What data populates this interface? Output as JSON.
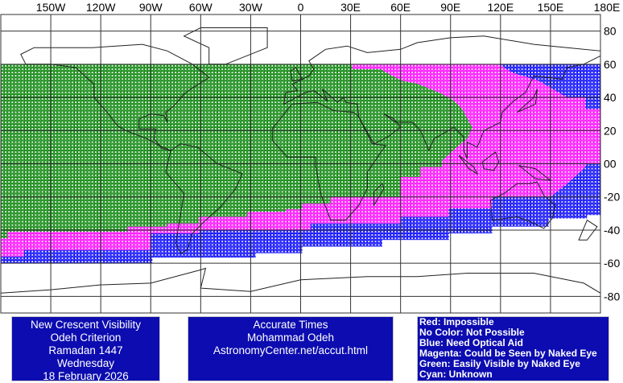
{
  "map_data": {
    "type": "map",
    "projection": "equirectangular",
    "lon_range": [
      -180,
      180
    ],
    "lat_range": [
      -90,
      90
    ],
    "grid": true,
    "lon_ticks": [
      "150W",
      "120W",
      "90W",
      "60W",
      "30W",
      "0",
      "30E",
      "60E",
      "90E",
      "120E",
      "150E",
      "180E"
    ],
    "lon_tick_values": [
      -150,
      -120,
      -90,
      -60,
      -30,
      0,
      30,
      60,
      90,
      120,
      150,
      180
    ],
    "lat_ticks": [
      "80",
      "60",
      "40",
      "20",
      "00",
      "-20",
      "-40",
      "-60",
      "-80"
    ],
    "lat_tick_values": [
      80,
      60,
      40,
      20,
      0,
      -20,
      -40,
      -60,
      -80
    ],
    "colors": {
      "blue": "#0000ff",
      "magenta": "#ff00ff",
      "green": "#008000",
      "coast": "#222222",
      "grid": "#333333"
    },
    "zones": [
      {
        "category": "Blue",
        "color": "#0000ff",
        "polygon": [
          [
            -180,
            60
          ],
          [
            180,
            60
          ],
          [
            180,
            -31
          ],
          [
            172,
            -31
          ],
          [
            172,
            -33
          ],
          [
            149,
            -33
          ],
          [
            149,
            -38
          ],
          [
            115,
            -38
          ],
          [
            115,
            -42
          ],
          [
            89,
            -42
          ],
          [
            89,
            -46
          ],
          [
            49,
            -46
          ],
          [
            49,
            -50
          ],
          [
            1,
            -50
          ],
          [
            1,
            -54
          ],
          [
            -27,
            -54
          ],
          [
            -27,
            -56.5
          ],
          [
            -89,
            -56.5
          ],
          [
            -89,
            -60
          ],
          [
            -180,
            -60
          ]
        ]
      },
      {
        "category": "Magenta",
        "color": "#ff00ff",
        "polygon": [
          [
            -180,
            60
          ],
          [
            119,
            60
          ],
          [
            127,
            55
          ],
          [
            143,
            50
          ],
          [
            160,
            40
          ],
          [
            171,
            40
          ],
          [
            171,
            33
          ],
          [
            180,
            33
          ],
          [
            180,
            0
          ],
          [
            172,
            0
          ],
          [
            170,
            -3
          ],
          [
            160,
            -12
          ],
          [
            150,
            -20
          ],
          [
            115,
            -20
          ],
          [
            115,
            -27
          ],
          [
            89,
            -27
          ],
          [
            89,
            -32
          ],
          [
            60,
            -32
          ],
          [
            60,
            -36
          ],
          [
            6,
            -36
          ],
          [
            6,
            -40
          ],
          [
            -61,
            -40
          ],
          [
            -61,
            -42
          ],
          [
            -90,
            -42
          ],
          [
            -90,
            -52
          ],
          [
            -166,
            -52
          ],
          [
            -166,
            -56
          ],
          [
            -180,
            -56
          ]
        ]
      },
      {
        "category": "Green",
        "color": "#008000",
        "polygon": [
          [
            -180,
            60
          ],
          [
            31,
            60
          ],
          [
            31,
            57
          ],
          [
            48,
            57
          ],
          [
            55,
            53
          ],
          [
            61,
            50
          ],
          [
            71,
            48
          ],
          [
            85,
            42
          ],
          [
            92,
            38
          ],
          [
            97,
            33
          ],
          [
            103,
            22
          ],
          [
            100,
            15
          ],
          [
            95,
            11
          ],
          [
            85,
            2
          ],
          [
            85,
            -2
          ],
          [
            72,
            -2
          ],
          [
            72,
            -8
          ],
          [
            60,
            -8
          ],
          [
            60,
            -20
          ],
          [
            18,
            -20
          ],
          [
            18,
            -24
          ],
          [
            1,
            -24
          ],
          [
            1,
            -27.5
          ],
          [
            -9,
            -27.5
          ],
          [
            -9,
            -29
          ],
          [
            -32,
            -29
          ],
          [
            -32,
            -32
          ],
          [
            -61,
            -32
          ],
          [
            -61,
            -36
          ],
          [
            -80,
            -36
          ],
          [
            -80,
            -38
          ],
          [
            -104,
            -38
          ],
          [
            -104,
            -41
          ],
          [
            -176,
            -41
          ],
          [
            -176,
            -45
          ],
          [
            -180,
            -45
          ]
        ]
      }
    ]
  },
  "left_panel": {
    "lines": [
      "New Crescent Visibility",
      "Odeh Criterion",
      "Ramadan 1447",
      "Wednesday",
      "18 February 2026"
    ]
  },
  "center_panel": {
    "lines": [
      "Accurate Times",
      "Mohammad Odeh",
      "AstronomyCenter.net/accut.html"
    ]
  },
  "legend": {
    "items": [
      {
        "label": "Red: Impossible",
        "color": "#ff0000"
      },
      {
        "label": "No Color: Not Possible",
        "color": "#ffffff"
      },
      {
        "label": "Blue: Need Optical Aid",
        "color": "#0000ff"
      },
      {
        "label": "Magenta: Could be Seen by Naked Eye",
        "color": "#ff00ff"
      },
      {
        "label": "Green: Easily Visible by Naked Eye",
        "color": "#008000"
      },
      {
        "label": "Cyan: Unknown",
        "color": "#00ffff"
      }
    ]
  }
}
